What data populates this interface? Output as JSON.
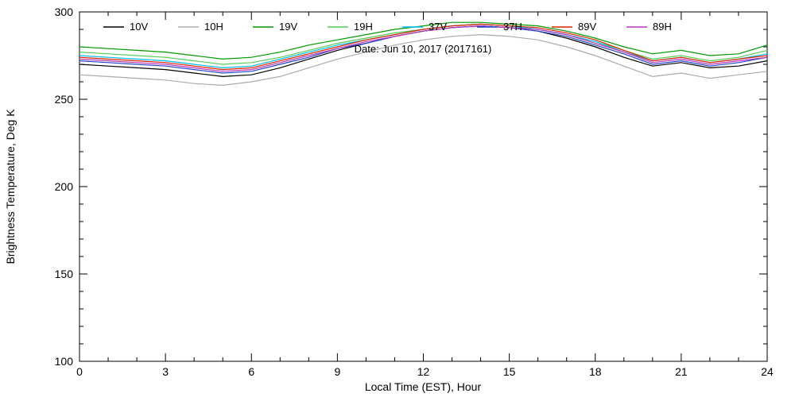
{
  "chart_data": {
    "type": "line",
    "title": "",
    "xlabel": "Local Time (EST), Hour",
    "ylabel": "Brightness Temperature, Deg K",
    "annotation": "Date: Jun 10, 2017 (2017161)",
    "xlim": [
      0,
      24
    ],
    "ylim": [
      100,
      300
    ],
    "xticks": [
      0,
      3,
      6,
      9,
      12,
      15,
      18,
      21,
      24
    ],
    "yticks": [
      100,
      150,
      200,
      250,
      300
    ],
    "x_minor_step": 1,
    "y_minor_step": 10,
    "grid": false,
    "legend_position": "top-inside-horizontal",
    "x": [
      0,
      1,
      2,
      3,
      4,
      5,
      6,
      7,
      8,
      9,
      10,
      11,
      12,
      13,
      14,
      15,
      16,
      17,
      18,
      19,
      20,
      21,
      22,
      23,
      24
    ],
    "series": [
      {
        "name": "10V",
        "color": "#000000",
        "values": [
          270,
          269,
          268,
          267,
          265,
          263,
          264,
          268,
          273,
          278,
          282,
          286,
          289,
          291,
          292,
          291,
          289,
          285,
          280,
          274,
          269,
          271,
          268,
          269,
          272
        ]
      },
      {
        "name": "10H",
        "color": "#aaaaaa",
        "values": [
          264,
          263,
          262,
          261,
          259,
          258,
          260,
          263,
          268,
          273,
          277,
          281,
          284,
          286,
          287,
          286,
          284,
          280,
          275,
          269,
          263,
          265,
          262,
          264,
          266
        ]
      },
      {
        "name": "19V",
        "color": "#009900",
        "values": [
          280,
          279,
          278,
          277,
          275,
          273,
          274,
          277,
          281,
          284,
          287,
          290,
          292,
          294,
          294,
          293,
          292,
          289,
          285,
          280,
          276,
          278,
          275,
          276,
          281
        ]
      },
      {
        "name": "19H",
        "color": "#55cc55",
        "values": [
          277,
          276,
          275,
          274,
          272,
          270,
          271,
          274,
          278,
          282,
          285,
          288,
          290,
          292,
          293,
          292,
          290,
          287,
          283,
          278,
          273,
          275,
          272,
          274,
          278
        ]
      },
      {
        "name": "37V",
        "color": "#00bbee",
        "values": [
          275,
          274,
          273,
          272,
          270,
          268,
          269,
          273,
          277,
          281,
          284,
          287,
          290,
          292,
          293,
          292,
          290,
          287,
          283,
          277,
          272,
          274,
          271,
          273,
          276
        ]
      },
      {
        "name": "37H",
        "color": "#2244cc",
        "values": [
          272,
          271,
          270,
          269,
          267,
          265,
          266,
          270,
          274,
          279,
          282,
          286,
          289,
          291,
          292,
          291,
          289,
          286,
          281,
          276,
          270,
          272,
          269,
          271,
          274
        ]
      },
      {
        "name": "89V",
        "color": "#dd2200",
        "values": [
          274,
          273,
          272,
          271,
          269,
          267,
          268,
          272,
          276,
          280,
          284,
          287,
          290,
          292,
          293,
          292,
          291,
          288,
          284,
          278,
          272,
          274,
          271,
          273,
          275
        ]
      },
      {
        "name": "89H",
        "color": "#bb33bb",
        "values": [
          273,
          272,
          271,
          270,
          268,
          266,
          267,
          271,
          275,
          279,
          283,
          286,
          289,
          291,
          292,
          291,
          290,
          287,
          282,
          277,
          271,
          273,
          270,
          272,
          274
        ]
      }
    ]
  }
}
